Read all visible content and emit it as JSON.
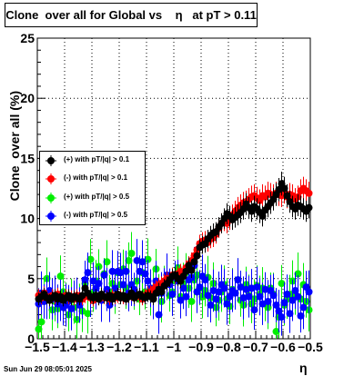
{
  "title": "Clone  over all for Global vs    η   at pT > 0.11",
  "timestamp": "Sun Jun 29 08:05:01 2025",
  "chart_data": {
    "type": "scatter",
    "xlabel": "η",
    "ylabel": "Clone  over all (%)",
    "xlim": [
      -1.5,
      -0.5
    ],
    "ylim": [
      0,
      25
    ],
    "x_ticks": [
      -1.5,
      -1.4,
      -1.3,
      -1.2,
      -1.1,
      -1.0,
      -0.9,
      -0.8,
      -0.7,
      -0.6,
      -0.5
    ],
    "x_tick_labels": [
      "−1.5",
      "−1.4",
      "−1.3",
      "−1.2",
      "−1.1",
      "−1",
      "−0.9",
      "−0.8",
      "−0.7",
      "−0.6",
      "−0.5"
    ],
    "y_ticks": [
      0,
      5,
      10,
      15,
      20,
      25
    ],
    "y_tick_labels": [
      "0",
      "5",
      "10",
      "15",
      "20",
      "25"
    ],
    "grid": true,
    "legend_position": "middle-left",
    "x": [
      -1.495,
      -1.485,
      -1.475,
      -1.465,
      -1.455,
      -1.445,
      -1.435,
      -1.425,
      -1.415,
      -1.405,
      -1.395,
      -1.385,
      -1.375,
      -1.365,
      -1.355,
      -1.345,
      -1.335,
      -1.325,
      -1.315,
      -1.305,
      -1.295,
      -1.285,
      -1.275,
      -1.265,
      -1.255,
      -1.245,
      -1.235,
      -1.225,
      -1.215,
      -1.205,
      -1.195,
      -1.185,
      -1.175,
      -1.165,
      -1.155,
      -1.145,
      -1.135,
      -1.125,
      -1.115,
      -1.105,
      -1.095,
      -1.085,
      -1.075,
      -1.065,
      -1.055,
      -1.045,
      -1.035,
      -1.025,
      -1.015,
      -1.005,
      -0.995,
      -0.985,
      -0.975,
      -0.965,
      -0.955,
      -0.945,
      -0.935,
      -0.925,
      -0.915,
      -0.905,
      -0.895,
      -0.885,
      -0.875,
      -0.865,
      -0.855,
      -0.845,
      -0.835,
      -0.825,
      -0.815,
      -0.805,
      -0.795,
      -0.785,
      -0.775,
      -0.765,
      -0.755,
      -0.745,
      -0.735,
      -0.725,
      -0.715,
      -0.705,
      -0.695,
      -0.685,
      -0.675,
      -0.665,
      -0.655,
      -0.645,
      -0.635,
      -0.625,
      -0.615,
      -0.605,
      -0.595,
      -0.585,
      -0.575,
      -0.565,
      -0.555,
      -0.545,
      -0.535,
      -0.525,
      -0.515,
      -0.505
    ],
    "series": [
      {
        "name": "(+) with pT/|q| > 0.1",
        "color": "#000000",
        "values": [
          3.3,
          3.5,
          3.7,
          3.4,
          3.2,
          3.4,
          3.6,
          3.3,
          3.5,
          3.2,
          3.4,
          3.6,
          3.3,
          3.5,
          3.4,
          3.3,
          3.6,
          4.2,
          3.8,
          3.5,
          3.4,
          3.6,
          3.3,
          3.7,
          3.5,
          3.4,
          3.6,
          3.3,
          3.5,
          3.7,
          3.4,
          3.6,
          3.3,
          3.5,
          3.8,
          3.4,
          3.6,
          3.7,
          3.5,
          3.4,
          3.6,
          3.5,
          3.3,
          3.8,
          4.1,
          3.9,
          4.4,
          4.6,
          4.9,
          5.2,
          5.3,
          5.0,
          4.8,
          5.2,
          5.6,
          6.1,
          5.7,
          6.4,
          6.9,
          7.6,
          7.8,
          7.9,
          8.3,
          8.6,
          8.8,
          8.9,
          9.3,
          9.6,
          10.0,
          10.4,
          10.2,
          9.9,
          10.1,
          10.3,
          10.5,
          10.8,
          11.2,
          10.9,
          10.6,
          11.0,
          10.8,
          10.5,
          10.2,
          10.7,
          11.0,
          11.3,
          11.6,
          12.0,
          12.4,
          12.9,
          12.5,
          11.9,
          11.4,
          11.0,
          10.8,
          11.1,
          11.0,
          10.8,
          10.6,
          10.9
        ]
      },
      {
        "name": "(-) with pT/|q| > 0.1",
        "color": "#ff0000",
        "values": [
          3.6,
          3.4,
          3.8,
          3.5,
          3.3,
          3.6,
          3.4,
          3.7,
          3.5,
          3.3,
          3.6,
          3.4,
          3.5,
          3.3,
          3.6,
          3.4,
          3.3,
          3.5,
          3.7,
          3.4,
          3.2,
          3.5,
          3.3,
          3.6,
          3.4,
          3.5,
          3.3,
          3.6,
          3.4,
          3.5,
          3.6,
          3.4,
          3.3,
          3.5,
          3.7,
          3.4,
          3.6,
          3.5,
          3.3,
          3.6,
          3.8,
          3.9,
          4.1,
          4.3,
          4.5,
          4.6,
          4.8,
          5.0,
          4.9,
          5.3,
          5.2,
          5.4,
          5.6,
          5.5,
          5.9,
          6.2,
          6.5,
          6.9,
          7.4,
          7.9,
          8.1,
          8.2,
          8.0,
          8.3,
          8.4,
          8.7,
          9.2,
          9.6,
          9.8,
          9.6,
          9.9,
          10.3,
          10.6,
          10.9,
          11.1,
          11.3,
          11.4,
          11.6,
          11.8,
          11.9,
          11.7,
          11.5,
          11.9,
          11.8,
          12.1,
          12.0,
          11.9,
          12.1,
          12.0,
          11.9,
          12.2,
          11.8,
          12.0,
          11.9,
          11.6,
          11.8,
          12.3,
          12.5,
          12.3,
          12.1
        ]
      },
      {
        "name": "(+) with pT/|q| > 0.5",
        "color": "#00ee00",
        "values": [
          0.8,
          1.4,
          3.5,
          5.0,
          3.2,
          2.4,
          3.1,
          2.5,
          5.2,
          3.9,
          2.9,
          2.0,
          3.2,
          2.6,
          1.6,
          3.1,
          2.3,
          4.6,
          2.1,
          6.6,
          3.8,
          4.8,
          6.0,
          3.5,
          5.4,
          6.4,
          3.9,
          4.6,
          3.6,
          5.5,
          4.5,
          5.8,
          4.2,
          6.5,
          7.1,
          3.8,
          4.8,
          3.3,
          5.5,
          3.9,
          6.6,
          3.5,
          4.2,
          5.8,
          3.8,
          3.1,
          4.6,
          5.0,
          3.6,
          3.9,
          4.8,
          5.9,
          3.5,
          4.6,
          5.5,
          4.2,
          3.1,
          4.9,
          5.3,
          4.2,
          3.5,
          4.0,
          5.1,
          3.4,
          4.6,
          2.6,
          3.2,
          3.9,
          4.5,
          3.3,
          2.7,
          4.1,
          3.8,
          4.9,
          3.2,
          2.8,
          4.5,
          3.6,
          2.9,
          3.3,
          4.4,
          3.7,
          4.2,
          2.9,
          2.6,
          4.2,
          3.7,
          0.6,
          1.8,
          4.6,
          2.8,
          3.3,
          3.7,
          4.8,
          3.5,
          5.4,
          3.3,
          4.5,
          3.1,
          2.4
        ]
      },
      {
        "name": "(-) with pT/|q| > 0.5",
        "color": "#0000ff",
        "values": [
          2.9,
          3.8,
          3.1,
          3.4,
          4.0,
          3.3,
          3.6,
          2.9,
          3.2,
          2.6,
          2.8,
          3.1,
          2.5,
          3.5,
          3.3,
          2.8,
          3.4,
          4.9,
          5.5,
          3.5,
          4.8,
          4.2,
          4.6,
          3.2,
          5.3,
          4.1,
          2.8,
          5.6,
          4.2,
          5.6,
          5.5,
          4.5,
          5.6,
          3.8,
          4.5,
          4.1,
          6.5,
          5.6,
          6.4,
          5.4,
          4.8,
          4.2,
          3.3,
          4.8,
          2.0,
          3.8,
          4.4,
          5.3,
          4.5,
          3.7,
          5.1,
          4.8,
          3.2,
          4.2,
          3.5,
          4.9,
          5.1,
          6.1,
          3.9,
          4.3,
          5.2,
          4.9,
          3.6,
          2.8,
          4.0,
          3.3,
          3.9,
          4.5,
          4.2,
          2.9,
          3.5,
          4.0,
          3.8,
          4.9,
          4.3,
          3.4,
          4.1,
          3.5,
          4.2,
          2.4,
          4.3,
          3.5,
          2.9,
          4.1,
          3.1,
          4.0,
          3.6,
          2.8,
          2.3,
          1.8,
          3.0,
          3.7,
          2.1,
          3.2,
          4.0,
          3.5,
          1.9,
          2.6,
          4.3,
          3.9
        ]
      }
    ]
  }
}
